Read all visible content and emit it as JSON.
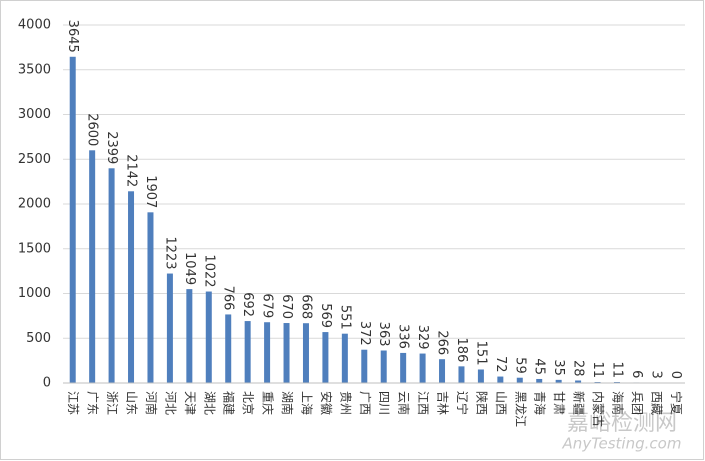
{
  "chart_data": {
    "type": "bar",
    "categories": [
      "江苏",
      "广东",
      "浙江",
      "山东",
      "河南",
      "河北",
      "天津",
      "湖北",
      "福建",
      "北京",
      "重庆",
      "湖南",
      "上海",
      "安徽",
      "贵州",
      "广西",
      "四川",
      "云南",
      "江西",
      "吉林",
      "辽宁",
      "陕西",
      "山西",
      "黑龙江",
      "青海",
      "甘肃",
      "新疆",
      "内蒙古",
      "海南",
      "兵团",
      "西藏",
      "宁夏"
    ],
    "values": [
      3645,
      2600,
      2399,
      2142,
      1907,
      1223,
      1049,
      1022,
      766,
      692,
      679,
      670,
      668,
      569,
      551,
      372,
      363,
      336,
      329,
      266,
      186,
      151,
      72,
      59,
      45,
      35,
      28,
      11,
      11,
      6,
      3,
      0
    ],
    "color": "#4f7fbd",
    "ylim": [
      0,
      4000
    ],
    "yticks": [
      0,
      500,
      1000,
      1500,
      2000,
      2500,
      3000,
      3500,
      4000
    ],
    "grid": true,
    "watermark": "嘉峪检测网",
    "watermark_url": "AnyTesting.com"
  }
}
